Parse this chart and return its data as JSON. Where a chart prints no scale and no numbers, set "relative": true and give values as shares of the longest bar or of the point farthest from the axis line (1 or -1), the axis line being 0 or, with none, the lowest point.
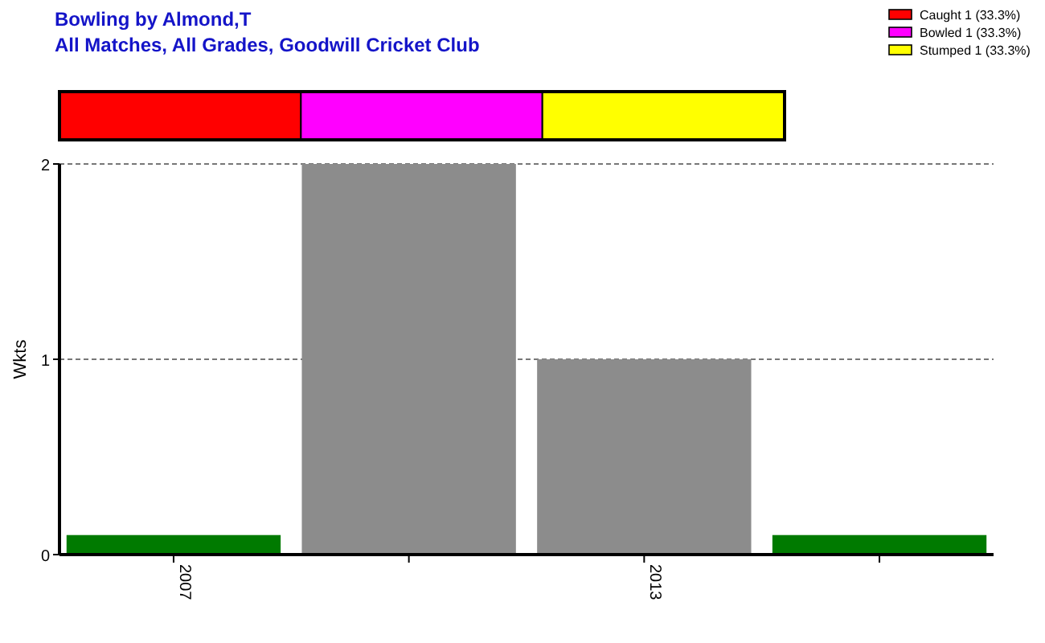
{
  "chart_data": [
    {
      "type": "bar",
      "title": "Bowling by Almond,T",
      "subtitle": "All Matches, All Grades, Goodwill Cricket Club",
      "orientation": "horizontal",
      "stacked": true,
      "relative": true,
      "categories": [
        null
      ],
      "legend": "top right",
      "series": [
        {
          "name": "Caught 1 (33.3%)",
          "color": "#ff0000",
          "values": [
            0.333
          ]
        },
        {
          "name": "Bowled 1 (33.3%)",
          "color": "#ff00ff",
          "values": [
            0.333
          ]
        },
        {
          "name": "Stumped 1 (33.3%)",
          "color": "#ffff00",
          "values": [
            0.334
          ]
        }
      ]
    },
    {
      "type": "bar",
      "ylabel": "Wkts",
      "categories": [
        "2007",
        null,
        "2013",
        null
      ],
      "values": [
        0.1,
        2,
        1,
        0.1
      ],
      "colors": [
        "#007a00",
        "#8c8c8c",
        "#8c8c8c",
        "#007a00"
      ],
      "ylim": [
        0,
        2
      ],
      "yticks": [
        0,
        1,
        2
      ],
      "grid": "y"
    }
  ]
}
